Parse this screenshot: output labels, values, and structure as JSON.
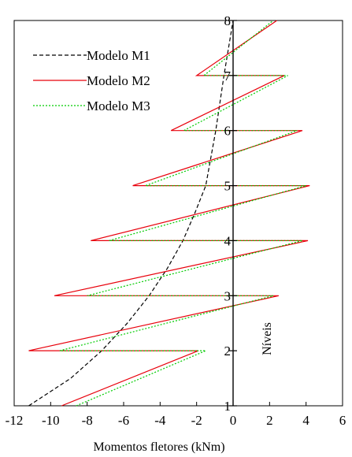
{
  "chart_data": {
    "type": "line",
    "xlabel": "Momentos fletores (kNm)",
    "ylabel": "Níveis",
    "xlim": [
      -12,
      6
    ],
    "ylim": [
      1,
      8
    ],
    "xticks": [
      -12,
      -10,
      -8,
      -6,
      -4,
      -2,
      0,
      2,
      4,
      6
    ],
    "yticks": [
      1,
      2,
      3,
      4,
      5,
      6,
      7,
      8
    ],
    "legend_position": "top-left",
    "series": [
      {
        "name": "Modelo M1",
        "color": "#000000",
        "style": "dashed",
        "x": [
          -11.2,
          -8.9,
          -7.2,
          -5.8,
          -4.6,
          -3.6,
          -2.75,
          -2.1,
          -1.5,
          -0.95,
          -0.5,
          0.0
        ],
        "y": [
          1.0,
          1.5,
          2.0,
          2.5,
          3.0,
          3.5,
          4.0,
          4.5,
          5.0,
          6.0,
          7.0,
          8.0
        ]
      },
      {
        "name": "Modelo M2",
        "color": "#e8000b",
        "style": "solid",
        "x": [
          -9.4,
          -1.9,
          -11.2,
          2.5,
          -9.8,
          4.1,
          -7.8,
          4.2,
          -5.5,
          3.8,
          -3.4,
          2.8,
          -2.0,
          2.4
        ],
        "y": [
          1.0,
          2.0,
          2.0,
          3.0,
          3.0,
          4.0,
          4.0,
          5.0,
          5.0,
          6.0,
          6.0,
          7.0,
          7.0,
          8.0
        ]
      },
      {
        "name": "Modelo M3",
        "color": "#00cc00",
        "style": "dotted",
        "x": [
          -8.6,
          -1.5,
          -9.5,
          2.2,
          -8.0,
          3.8,
          -6.8,
          4.0,
          -4.8,
          3.5,
          -2.7,
          3.0,
          -1.6,
          2.2
        ],
        "y": [
          1.0,
          2.0,
          2.0,
          3.0,
          3.0,
          4.0,
          4.0,
          5.0,
          5.0,
          6.0,
          6.0,
          7.0,
          7.0,
          8.0
        ]
      }
    ]
  }
}
